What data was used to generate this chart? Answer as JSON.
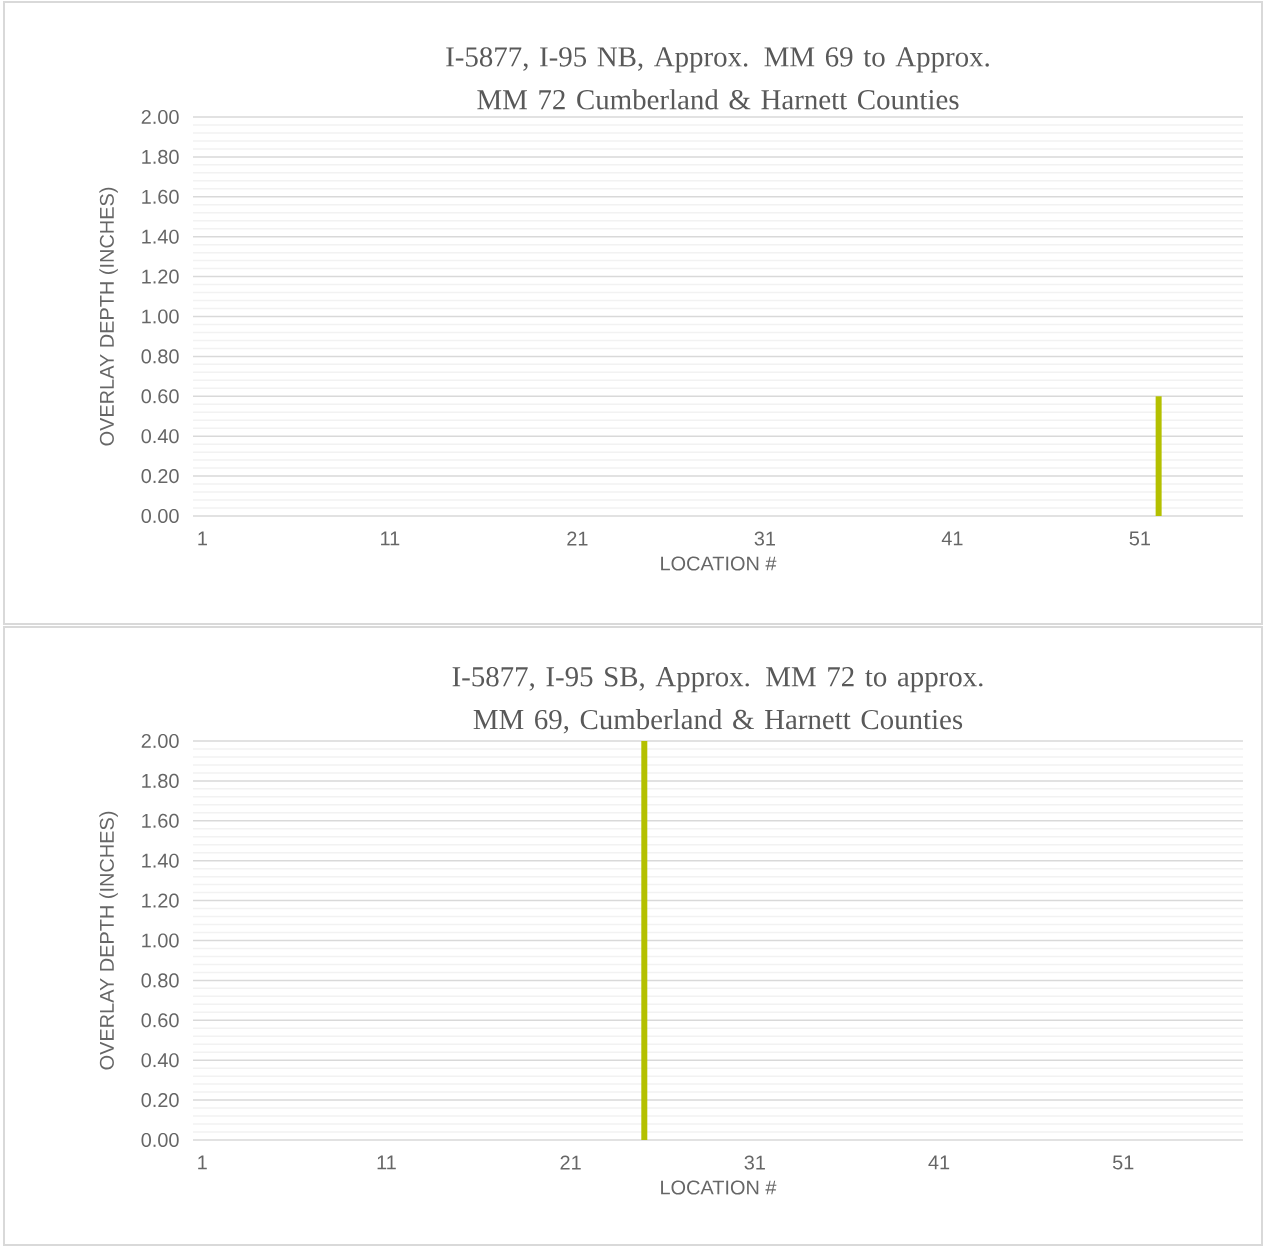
{
  "chart_data": [
    {
      "type": "bar",
      "title": "I-5877, I-95 NB, Approx. MM 69 to Approx. MM 72 Cumberland & Harnett Counties",
      "xlabel": "LOCATION #",
      "ylabel": "OVERLAY DEPTH (INCHES)",
      "categories": [
        "1",
        null,
        null,
        null,
        null,
        null,
        null,
        null,
        null,
        null,
        "11",
        null,
        null,
        null,
        null,
        null,
        null,
        null,
        null,
        null,
        "21",
        null,
        null,
        null,
        null,
        null,
        null,
        null,
        null,
        null,
        "31",
        null,
        null,
        null,
        null,
        null,
        null,
        null,
        null,
        null,
        "41",
        null,
        null,
        null,
        null,
        null,
        null,
        null,
        null,
        null,
        "51",
        null,
        null,
        null,
        null,
        null
      ],
      "values": [
        0,
        0,
        0,
        0,
        0,
        0,
        0,
        0,
        0,
        0,
        0,
        0,
        0,
        0,
        0,
        0,
        0,
        0,
        0,
        0,
        0,
        0,
        0,
        0,
        0,
        0,
        0,
        0,
        0,
        0,
        0,
        0,
        0,
        0,
        0,
        0,
        0,
        0,
        0,
        0,
        0,
        0,
        0,
        0,
        0,
        0,
        0,
        0,
        0,
        0,
        0,
        0.6,
        0,
        0,
        0,
        0
      ],
      "color": "#b4c000",
      "ylim": [
        0,
        2
      ],
      "yticks": [
        {
          "value": 0,
          "label": "0.00"
        },
        {
          "value": 0.2,
          "label": "0.20"
        },
        {
          "value": 0.4,
          "label": "0.40"
        },
        {
          "value": 0.6,
          "label": "0.60"
        },
        {
          "value": 0.8,
          "label": "0.80"
        },
        {
          "value": 1.0,
          "label": "1.00"
        },
        {
          "value": 1.2,
          "label": "1.20"
        },
        {
          "value": 1.4,
          "label": "1.40"
        },
        {
          "value": 1.6,
          "label": "1.60"
        },
        {
          "value": 1.8,
          "label": "1.80"
        },
        {
          "value": 2.0,
          "label": "2.00"
        }
      ],
      "grid": "y"
    },
    {
      "type": "bar",
      "title": "I-5877, I-95 SB, Approx. MM 72 to approx. MM 69, Cumberland & Harnett Counties",
      "xlabel": "LOCATION #",
      "ylabel": "OVERLAY DEPTH (INCHES)",
      "categories": [
        "1",
        null,
        null,
        null,
        null,
        null,
        null,
        null,
        null,
        null,
        "11",
        null,
        null,
        null,
        null,
        null,
        null,
        null,
        null,
        null,
        "21",
        null,
        null,
        null,
        null,
        null,
        null,
        null,
        null,
        null,
        "31",
        null,
        null,
        null,
        null,
        null,
        null,
        null,
        null,
        null,
        "41",
        null,
        null,
        null,
        null,
        null,
        null,
        null,
        null,
        null,
        "51",
        null,
        null,
        null,
        null,
        null,
        null
      ],
      "values": [
        0,
        0,
        0,
        0,
        0,
        0,
        0,
        0,
        0,
        0,
        0,
        0,
        0,
        0,
        0,
        0,
        0,
        0,
        0,
        0,
        0,
        0,
        0,
        0,
        2.0,
        0,
        0,
        0,
        0,
        0,
        0,
        0,
        0,
        0,
        0,
        0,
        0,
        0,
        0,
        0,
        0,
        0,
        0,
        0,
        0,
        0,
        0,
        0,
        0,
        0,
        0,
        0,
        0,
        0,
        0,
        0,
        0
      ],
      "color": "#b4c000",
      "ylim": [
        0,
        2
      ],
      "yticks": [
        {
          "value": 0,
          "label": "0.00"
        },
        {
          "value": 0.2,
          "label": "0.20"
        },
        {
          "value": 0.4,
          "label": "0.40"
        },
        {
          "value": 0.6,
          "label": "0.60"
        },
        {
          "value": 0.8,
          "label": "0.80"
        },
        {
          "value": 1.0,
          "label": "1.00"
        },
        {
          "value": 1.2,
          "label": "1.20"
        },
        {
          "value": 1.4,
          "label": "1.40"
        },
        {
          "value": 1.6,
          "label": "1.60"
        },
        {
          "value": 1.8,
          "label": "1.80"
        },
        {
          "value": 2.0,
          "label": "2.00"
        }
      ],
      "grid": "y"
    }
  ]
}
